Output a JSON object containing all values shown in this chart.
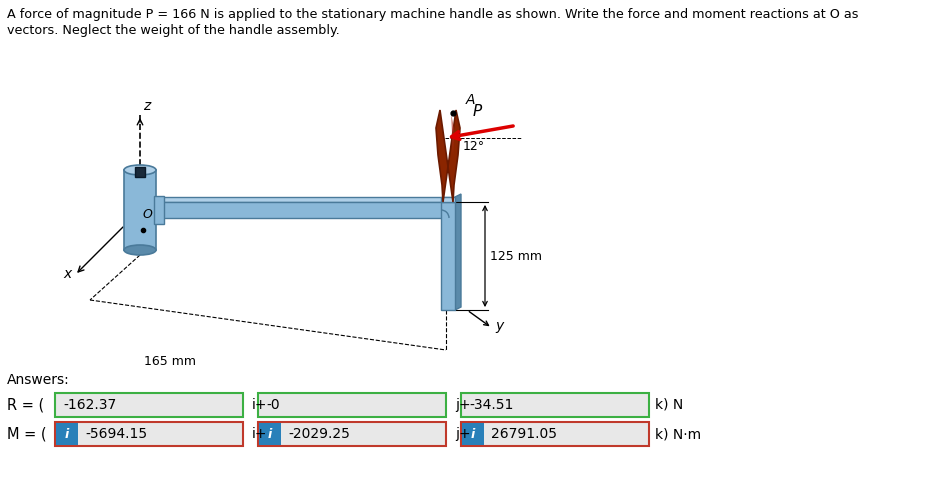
{
  "title_line1": "A force of magnitude P = 166 N is applied to the stationary machine handle as shown. Write the force and moment reactions at O as",
  "title_line2": "vectors. Neglect the weight of the handle assembly.",
  "answers_label": "Answers:",
  "R_label": "R = (",
  "R_i": "-162.37",
  "R_j": "-0",
  "R_k": "-34.51",
  "R_unit": "k) N",
  "M_label": "M = (",
  "M_i": "-5694.15",
  "M_j": "-2029.25",
  "M_k": "26791.05",
  "M_unit": "k) N·m",
  "connector_i": "i+",
  "connector_j": "j+",
  "box_green": "#3cb043",
  "box_red": "#c0392b",
  "box_fill": "#e8e8e8",
  "info_blue": "#2980b9",
  "bg_color": "#ffffff",
  "dim_165": "165 mm",
  "dim_125": "125 mm",
  "angle_label": "12°",
  "label_P": "P",
  "label_A": "A",
  "label_x": "x",
  "label_y": "y",
  "label_z": "z",
  "label_O": "O",
  "cyl_face": "#8ab8d8",
  "cyl_top": "#b0d0e8",
  "cyl_dark": "#4a7a9a",
  "cyl_shadow": "#5a8aaa",
  "bar_face": "#8ab8d8",
  "bar_top": "#b0d0e8",
  "bar_dark": "#4a7a9a",
  "handle_dark": "#6b1a00",
  "handle_mid": "#8b2500",
  "handle_light": "#b03020",
  "arrow_red": "#dd0000",
  "black": "#000000"
}
